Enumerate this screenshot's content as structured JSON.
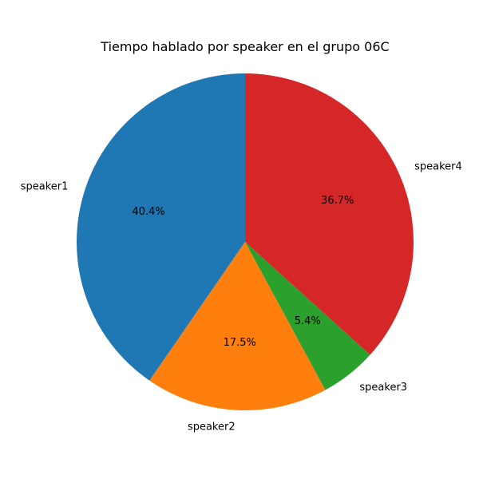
{
  "chart_data": {
    "type": "pie",
    "title": "Tiempo hablado por speaker en el grupo 06C",
    "start_angle_deg": 90,
    "direction": "counterclockwise",
    "slices": [
      {
        "label": "speaker1",
        "percent": 40.4,
        "pct_text": "40.4%",
        "color": "#1f77b4"
      },
      {
        "label": "speaker2",
        "percent": 17.5,
        "pct_text": "17.5%",
        "color": "#ff7f0e"
      },
      {
        "label": "speaker3",
        "percent": 5.4,
        "pct_text": "5.4%",
        "color": "#2ca02c"
      },
      {
        "label": "speaker4",
        "percent": 36.7,
        "pct_text": "36.7%",
        "color": "#d62728"
      }
    ]
  }
}
